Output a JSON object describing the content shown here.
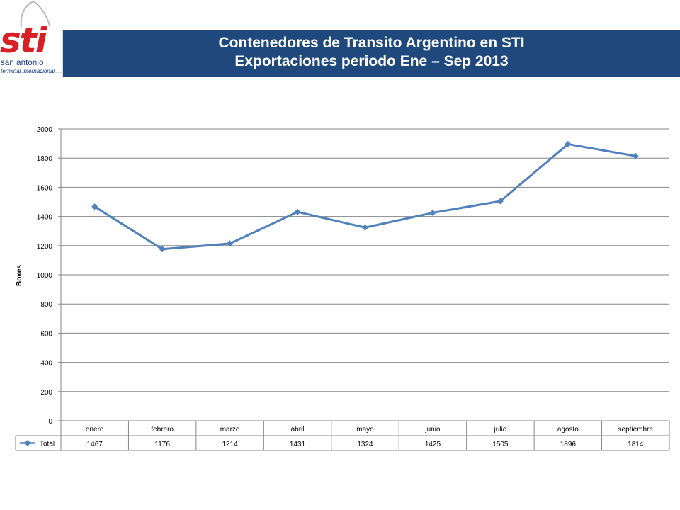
{
  "logo": {
    "word": "sti",
    "line1": "san antonio",
    "line2": "terminal internacional"
  },
  "title": {
    "line1": "Contenedores de Transito Argentino en STI",
    "line2": "Exportaciones periodo Ene – Sep 2013"
  },
  "colors": {
    "banner": "#1f497d",
    "series": "#4f81bd",
    "logo_red": "#d71f26",
    "logo_blue": "#1b3e8c"
  },
  "chart_data": {
    "type": "line",
    "categories": [
      "enero",
      "febrero",
      "marzo",
      "abril",
      "mayo",
      "junio",
      "julio",
      "agosto",
      "septiembre"
    ],
    "series": [
      {
        "name": "Total",
        "values": [
          1467,
          1176,
          1214,
          1431,
          1324,
          1425,
          1505,
          1896,
          1814
        ],
        "marker": "diamond"
      }
    ],
    "xlabel": "",
    "ylabel": "Boxes",
    "ylim": [
      0,
      2000
    ],
    "yticks": [
      0,
      200,
      400,
      600,
      800,
      1000,
      1200,
      1400,
      1600,
      1800,
      2000
    ],
    "grid": true,
    "legend": "data-table-left",
    "data_table": true
  }
}
